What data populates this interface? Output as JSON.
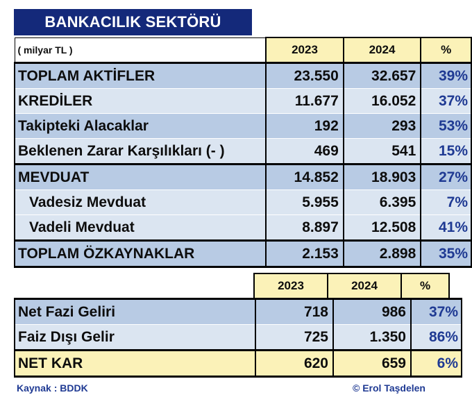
{
  "title": "BANKACILIK SEKTÖRÜ",
  "unit": "( milyar TL )",
  "headers": {
    "y1": "2023",
    "y2": "2024",
    "pct": "%"
  },
  "rows": [
    {
      "label": "TOPLAM AKTİFLER",
      "v2023": "23.550",
      "v2024": "32.657",
      "pct": "39%"
    },
    {
      "label": "KREDİLER",
      "v2023": "11.677",
      "v2024": "16.052",
      "pct": "37%"
    },
    {
      "label": "Takipteki Alacaklar",
      "v2023": "192",
      "v2024": "293",
      "pct": "53%"
    },
    {
      "label": "Beklenen Zarar Karşılıkları (- )",
      "v2023": "469",
      "v2024": "541",
      "pct": "15%"
    },
    {
      "label": "MEVDUAT",
      "v2023": "14.852",
      "v2024": "18.903",
      "pct": "27%"
    },
    {
      "label": "Vadesiz Mevduat",
      "v2023": "5.955",
      "v2024": "6.395",
      "pct": "7%"
    },
    {
      "label": "Vadeli Mevduat",
      "v2023": "8.897",
      "v2024": "12.508",
      "pct": "41%"
    },
    {
      "label": "TOPLAM ÖZKAYNAKLAR",
      "v2023": "2.153",
      "v2024": "2.898",
      "pct": "35%"
    }
  ],
  "income_headers": {
    "y1": "2023",
    "y2": "2024",
    "pct": "%"
  },
  "income_rows": [
    {
      "label": "Net Fazi Geliri",
      "v2023": "718",
      "v2024": "986",
      "pct": "37%"
    },
    {
      "label": "Faiz Dışı Gelir",
      "v2023": "725",
      "v2024": "1.350",
      "pct": "86%"
    },
    {
      "label": "NET KAR",
      "v2023": "620",
      "v2024": "659",
      "pct": "6%"
    }
  ],
  "footer": {
    "source": "Kaynak : BDDK",
    "author": "© Erol Taşdelen"
  },
  "colors": {
    "title_bg": "#14297a",
    "header_yellow": "#fbf2b8",
    "row_dark": "#b8cbe4",
    "row_light": "#dbe5f1",
    "accent_text": "#1f3a93"
  }
}
